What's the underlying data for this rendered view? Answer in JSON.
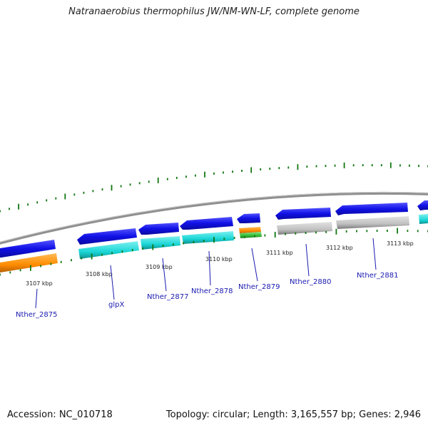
{
  "title": "Natranaerobius thermophilus JW/NM-WN-LF, complete genome",
  "footer": {
    "accession": "Accession: NC_010718",
    "stats": "Topology: circular; Length: 3,165,557 bp; Genes: 2,946"
  },
  "scale_labels": [
    "3107 kbp",
    "3108 kbp",
    "3109 kbp",
    "3110 kbp",
    "3111 kbp",
    "3112 kbp",
    "3113 kbp"
  ],
  "gene_labels": [
    "Nther_2875",
    "glpX",
    "Nther_2877",
    "Nther_2878",
    "Nther_2879",
    "Nther_2880",
    "Nther_2881"
  ],
  "colors": {
    "cds_forward": "#1010e6",
    "cyan": "#1ad6d6",
    "orange": "#ff8c00",
    "green": "#33bb33",
    "grey": "#c0c0c0",
    "backbone": "#909090",
    "gc_ticks": "#117711",
    "label": "#1a1ab0"
  }
}
